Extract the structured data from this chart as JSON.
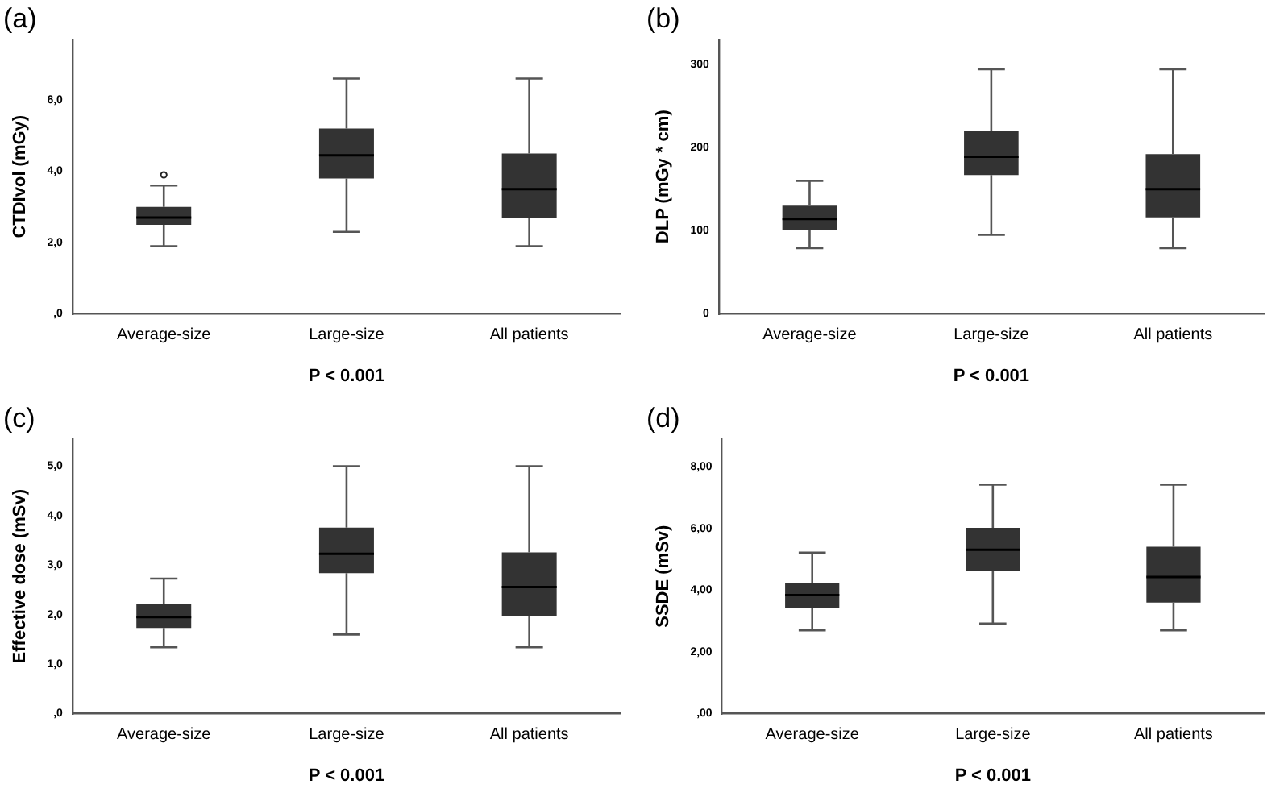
{
  "chart_data": [
    {
      "type": "box",
      "title": "(a)",
      "ylabel": "CTDIvol (mGy)",
      "xlabel": "P < 0.001",
      "categories": [
        "Average-size",
        "Large-size",
        "All patients"
      ],
      "ylim": [
        0,
        7.7
      ],
      "yticks": [
        {
          "value": 0,
          "label": ",0"
        },
        {
          "value": 2,
          "label": "2,0"
        },
        {
          "value": 4,
          "label": "4,0"
        },
        {
          "value": 6,
          "label": "6,0"
        }
      ],
      "grid": false,
      "series": [
        {
          "color": "#333333",
          "boxes": [
            {
              "low": 1.9,
              "q1": 2.5,
              "median": 2.7,
              "q3": 3.0,
              "high": 3.6,
              "outliers": [
                3.9
              ]
            },
            {
              "low": 2.3,
              "q1": 3.8,
              "median": 4.45,
              "q3": 5.2,
              "high": 6.6
            },
            {
              "low": 1.9,
              "q1": 2.7,
              "median": 3.5,
              "q3": 4.5,
              "high": 6.6
            }
          ]
        }
      ]
    },
    {
      "type": "box",
      "title": "(b)",
      "ylabel": "DLP (mGy * cm)",
      "xlabel": "P < 0.001",
      "categories": [
        "Average-size",
        "Large-size",
        "All patients"
      ],
      "ylim": [
        0,
        330
      ],
      "yticks": [
        0,
        100,
        200,
        300
      ],
      "grid": false,
      "series": [
        {
          "color": "#333333",
          "boxes": [
            {
              "low": 79,
              "q1": 101,
              "median": 114,
              "q3": 130,
              "high": 160
            },
            {
              "low": 95,
              "q1": 167,
              "median": 189,
              "q3": 220,
              "high": 294
            },
            {
              "low": 79,
              "q1": 116,
              "median": 150,
              "q3": 192,
              "high": 294
            }
          ]
        }
      ]
    },
    {
      "type": "box",
      "title": "(c)",
      "ylabel": "Effective dose (mSv)",
      "xlabel": "P < 0.001",
      "categories": [
        "Average-size",
        "Large-size",
        "All patients"
      ],
      "ylim": [
        0,
        5.55
      ],
      "yticks": [
        {
          "value": 0,
          "label": ",0"
        },
        {
          "value": 1,
          "label": "1,0"
        },
        {
          "value": 2,
          "label": "2,0"
        },
        {
          "value": 3,
          "label": "3,0"
        },
        {
          "value": 4,
          "label": "4,0"
        },
        {
          "value": 5,
          "label": "5,0"
        }
      ],
      "grid": false,
      "series": [
        {
          "color": "#333333",
          "boxes": [
            {
              "low": 1.34,
              "q1": 1.73,
              "median": 1.95,
              "q3": 2.21,
              "high": 2.73
            },
            {
              "low": 1.6,
              "q1": 2.84,
              "median": 3.23,
              "q3": 3.76,
              "high": 5.0
            },
            {
              "low": 1.34,
              "q1": 1.98,
              "median": 2.56,
              "q3": 3.26,
              "high": 5.0
            }
          ]
        }
      ]
    },
    {
      "type": "box",
      "title": "(d)",
      "ylabel": "SSDE (mSv)",
      "xlabel": "P < 0.001",
      "categories": [
        "Average-size",
        "Large-size",
        "All patients"
      ],
      "ylim": [
        0,
        8.9
      ],
      "yticks": [
        {
          "value": 0,
          "label": ",00"
        },
        {
          "value": 2,
          "label": "2,00"
        },
        {
          "value": 4,
          "label": "4,00"
        },
        {
          "value": 6,
          "label": "6,00"
        },
        {
          "value": 8,
          "label": "8,00"
        }
      ],
      "grid": false,
      "series": [
        {
          "color": "#333333",
          "boxes": [
            {
              "low": 2.7,
              "q1": 3.42,
              "median": 3.84,
              "q3": 4.22,
              "high": 5.22
            },
            {
              "low": 2.92,
              "q1": 4.62,
              "median": 5.31,
              "q3": 6.02,
              "high": 7.42
            },
            {
              "low": 2.7,
              "q1": 3.6,
              "median": 4.43,
              "q3": 5.41,
              "high": 7.42
            }
          ]
        }
      ]
    }
  ]
}
